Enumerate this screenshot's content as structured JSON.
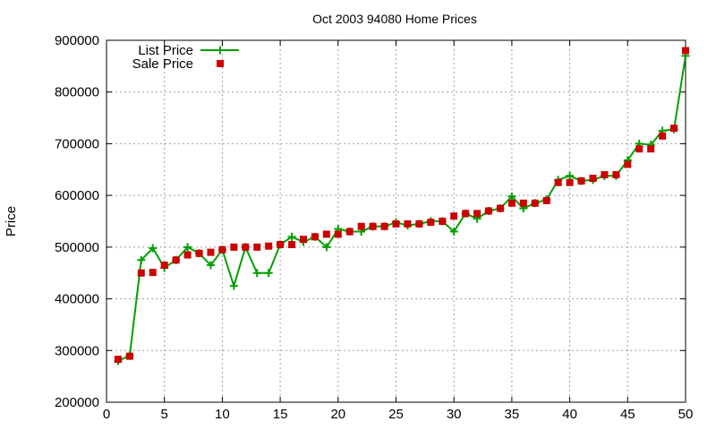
{
  "chart_data": {
    "type": "line",
    "title": "Oct 2003 94080 Home Prices",
    "xlabel": "",
    "ylabel": "Price",
    "xlim": [
      0,
      50
    ],
    "ylim": [
      200000,
      900000
    ],
    "x_ticks": [
      0,
      5,
      10,
      15,
      20,
      25,
      30,
      35,
      40,
      45,
      50
    ],
    "y_ticks": [
      200000,
      300000,
      400000,
      500000,
      600000,
      700000,
      800000,
      900000
    ],
    "grid": true,
    "legend_position": "top-left",
    "series": [
      {
        "name": "List Price",
        "style": "line-with-plus-markers",
        "color": "#00a000",
        "x": [
          1,
          2,
          3,
          4,
          5,
          6,
          7,
          8,
          9,
          10,
          11,
          12,
          13,
          14,
          15,
          16,
          17,
          18,
          19,
          20,
          21,
          22,
          23,
          24,
          25,
          26,
          27,
          28,
          29,
          30,
          31,
          32,
          33,
          34,
          35,
          36,
          37,
          38,
          39,
          40,
          41,
          42,
          43,
          44,
          45,
          46,
          47,
          48,
          49,
          50
        ],
        "values": [
          280000,
          290000,
          475000,
          498000,
          460000,
          475000,
          500000,
          488000,
          465000,
          495000,
          425000,
          500000,
          450000,
          450000,
          505000,
          520000,
          510000,
          520000,
          500000,
          535000,
          530000,
          530000,
          540000,
          540000,
          548000,
          542000,
          545000,
          550000,
          550000,
          530000,
          565000,
          555000,
          570000,
          575000,
          598000,
          575000,
          585000,
          592000,
          630000,
          638000,
          628000,
          630000,
          638000,
          638000,
          668000,
          700000,
          698000,
          725000,
          728000,
          870000
        ]
      },
      {
        "name": "Sale Price",
        "style": "square-markers",
        "color": "#cc0000",
        "x": [
          1,
          2,
          3,
          4,
          5,
          6,
          7,
          8,
          9,
          10,
          11,
          12,
          13,
          14,
          15,
          16,
          17,
          18,
          19,
          20,
          21,
          22,
          23,
          24,
          25,
          26,
          27,
          28,
          29,
          30,
          31,
          32,
          33,
          34,
          35,
          36,
          37,
          38,
          39,
          40,
          41,
          42,
          43,
          44,
          45,
          46,
          47,
          48,
          49,
          50
        ],
        "values": [
          283000,
          289000,
          450000,
          451000,
          465000,
          475000,
          485000,
          488000,
          490000,
          495000,
          500000,
          500000,
          500000,
          502000,
          505000,
          505000,
          515000,
          520000,
          525000,
          525000,
          530000,
          540000,
          540000,
          540000,
          545000,
          545000,
          545000,
          548000,
          550000,
          560000,
          565000,
          565000,
          570000,
          575000,
          585000,
          585000,
          585000,
          590000,
          625000,
          625000,
          628000,
          633000,
          640000,
          640000,
          660000,
          690000,
          690000,
          715000,
          730000,
          880000
        ]
      }
    ]
  }
}
